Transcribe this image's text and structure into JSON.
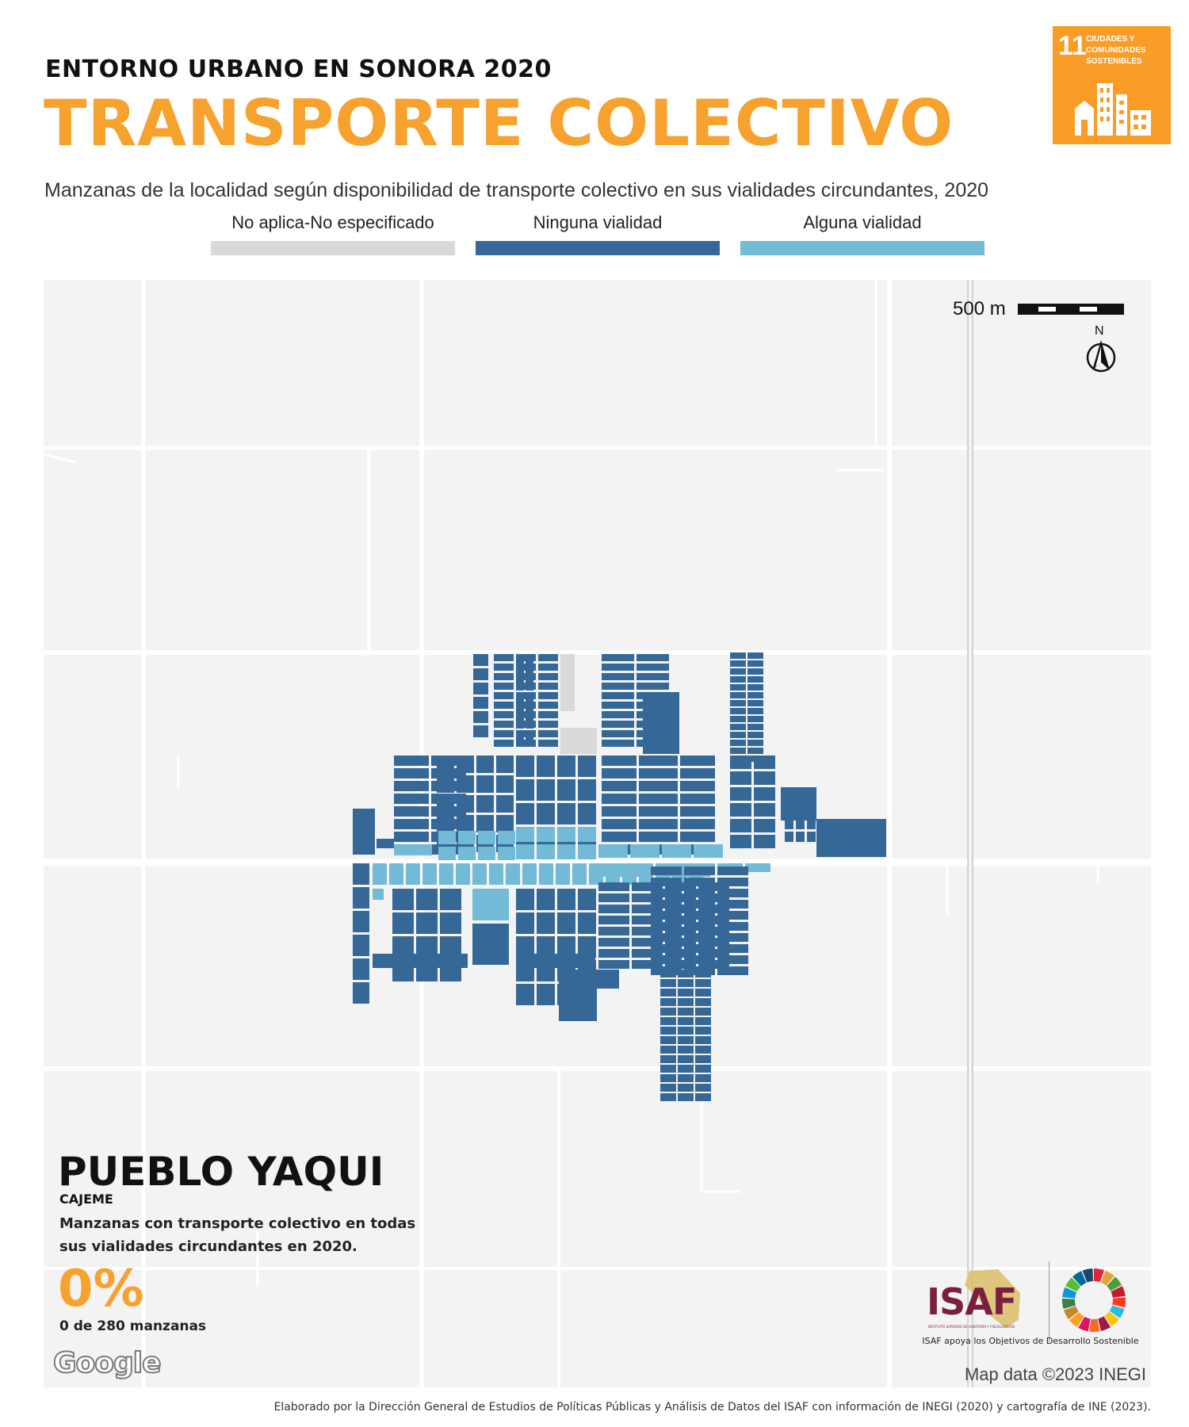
{
  "header": {
    "kicker": "ENTORNO URBANO EN SONORA 2020",
    "title": "TRANSPORTE COLECTIVO",
    "subtitle": "Manzanas de la localidad según disponibilidad de  transporte colectivo en sus vialidades circundantes, 2020"
  },
  "sdg_badge": {
    "number": "11",
    "label": "CIUDADES Y COMUNIDADES SOSTENIBLES",
    "color": "#f99d26",
    "icon": "city-buildings-icon"
  },
  "legend": [
    {
      "label": "No aplica-No especificado",
      "color": "#d9d9d9"
    },
    {
      "label": "Ninguna vialidad",
      "color": "#356897"
    },
    {
      "label": "Alguna vialidad",
      "color": "#72bad5"
    }
  ],
  "map": {
    "background_color": "#f3f3f3",
    "road_color": "#ffffff",
    "scale_label": "500 m",
    "north_label": "N",
    "attribution": "Map data ©2023 INEGI",
    "provider": "Google"
  },
  "locality": {
    "name": "PUEBLO YAQUI",
    "municipality": "CAJEME",
    "stat_description": "Manzanas con transporte colectivo en todas sus vialidades circundantes en 2020.",
    "stat_value": "0%",
    "stat_count": "0 de 280 manzanas"
  },
  "logos": {
    "isaf": "ISAF",
    "isaf_subtitle": "INSTITUTO SUPERIOR DE AUDITORÍA Y FISCALIZACIÓN",
    "isaf_support": "ISAF apoya los Objetivos de Desarrollo Sostenible",
    "isaf_color": "#7a1f3d"
  },
  "footer": "Elaborado por la Dirección General de Estudios de Políticas Públicas y Análisis de Datos del ISAF con información de INEGI (2020) y cartografía de INE (2023)."
}
